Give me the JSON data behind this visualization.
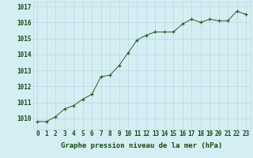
{
  "x": [
    0,
    1,
    2,
    3,
    4,
    5,
    6,
    7,
    8,
    9,
    10,
    11,
    12,
    13,
    14,
    15,
    16,
    17,
    18,
    19,
    20,
    21,
    22,
    23
  ],
  "y": [
    1009.8,
    1009.8,
    1010.1,
    1010.6,
    1010.8,
    1011.2,
    1011.5,
    1012.6,
    1012.7,
    1013.3,
    1014.1,
    1014.9,
    1015.2,
    1015.4,
    1015.4,
    1015.4,
    1015.9,
    1016.2,
    1016.0,
    1016.2,
    1016.1,
    1016.1,
    1016.7,
    1016.5
  ],
  "ylim": [
    1009.3,
    1017.3
  ],
  "yticks": [
    1010,
    1011,
    1012,
    1013,
    1014,
    1015,
    1016,
    1017
  ],
  "xticks": [
    0,
    1,
    2,
    3,
    4,
    5,
    6,
    7,
    8,
    9,
    10,
    11,
    12,
    13,
    14,
    15,
    16,
    17,
    18,
    19,
    20,
    21,
    22,
    23
  ],
  "xlabel": "Graphe pression niveau de la mer (hPa)",
  "line_color": "#2d5a1b",
  "marker": "+",
  "background_color": "#d4eef4",
  "grid_color": "#b8d8e0",
  "tick_color": "#1a4a10",
  "label_color": "#1a4a10",
  "font_size_xlabel": 6.5,
  "font_size_ticks": 5.5
}
